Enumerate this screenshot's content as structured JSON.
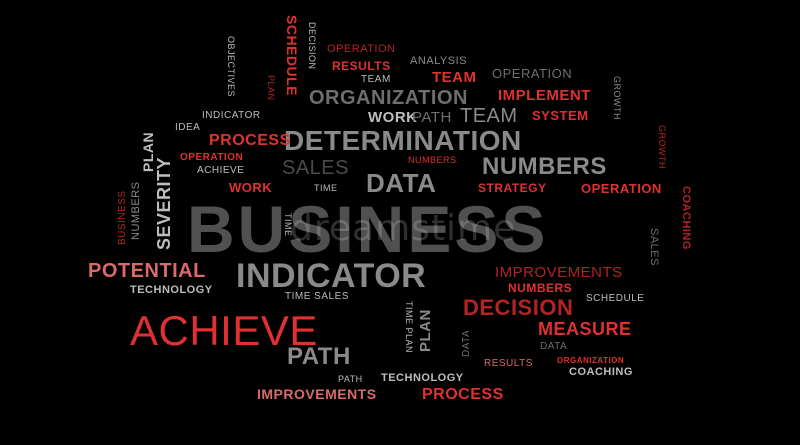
{
  "palette": {
    "background": "#000000",
    "red": "#e03131",
    "dark_red": "#b22424",
    "salmon": "#d96a6a",
    "grey": "#8a8a8a",
    "light_grey": "#bdbdbd",
    "dark_grey": "#4a4a4a"
  },
  "watermark": "dreamstime",
  "words": [
    {
      "id": "business",
      "text": "BUSINESS",
      "color": "#505050"
    },
    {
      "id": "indicator-large",
      "text": "INDICATOR",
      "color": "#8a8a8a"
    },
    {
      "id": "achieve-large",
      "text": "ACHIEVE",
      "color": "#e03131"
    },
    {
      "id": "determination",
      "text": "DETERMINATION",
      "color": "#8a8a8a"
    },
    {
      "id": "numbers-large",
      "text": "NUMBERS",
      "color": "#8a8a8a"
    },
    {
      "id": "organization",
      "text": "ORGANIZATION",
      "color": "#6e6e6e"
    },
    {
      "id": "data-large",
      "text": "DATA",
      "color": "#8a8a8a"
    },
    {
      "id": "sales-mid",
      "text": "SALES",
      "color": "#4a4a4a"
    },
    {
      "id": "path-large",
      "text": "PATH",
      "color": "#8a8a8a"
    },
    {
      "id": "potential",
      "text": "POTENTIAL",
      "color": "#d96a6a"
    },
    {
      "id": "decision-mid",
      "text": "DECISION",
      "color": "#b22424"
    },
    {
      "id": "measure",
      "text": "MEASURE",
      "color": "#e03131"
    },
    {
      "id": "improvements-top",
      "text": "IMPROVEMENTS",
      "color": "#b22424"
    },
    {
      "id": "improvements-bottom",
      "text": "IMPROVEMENTS",
      "color": "#d96a6a"
    },
    {
      "id": "process-left",
      "text": "PROCESS",
      "color": "#e03131"
    },
    {
      "id": "process-bottom",
      "text": "PROCESS",
      "color": "#e03131"
    },
    {
      "id": "work-mid",
      "text": "WORK",
      "color": "#bdbdbd"
    },
    {
      "id": "path-mid",
      "text": "PATH",
      "color": "#6e6e6e"
    },
    {
      "id": "team-grey",
      "text": "TEAM",
      "color": "#8a8a8a"
    },
    {
      "id": "team-red",
      "text": "TEAM",
      "color": "#e03131"
    },
    {
      "id": "implement",
      "text": "IMPLEMENT",
      "color": "#e03131"
    },
    {
      "id": "system",
      "text": "SYSTEM",
      "color": "#e03131"
    },
    {
      "id": "results-top",
      "text": "RESULTS",
      "color": "#e03131"
    },
    {
      "id": "operation-top",
      "text": "OPERATION",
      "color": "#b22424"
    },
    {
      "id": "analysis",
      "text": "ANALYSIS",
      "color": "#8a8a8a"
    },
    {
      "id": "team-small",
      "text": "TEAM",
      "color": "#bdbdbd"
    },
    {
      "id": "operation-right-top",
      "text": "OPERATION",
      "color": "#6e6e6e"
    },
    {
      "id": "strategy",
      "text": "STRATEGY",
      "color": "#e03131"
    },
    {
      "id": "operation-right",
      "text": "OPERATION",
      "color": "#e03131"
    },
    {
      "id": "numbers-small-mid",
      "text": "NUMBERS",
      "color": "#e03131"
    },
    {
      "id": "time-mid",
      "text": "TIME",
      "color": "#bdbdbd"
    },
    {
      "id": "work-red",
      "text": "WORK",
      "color": "#e03131"
    },
    {
      "id": "operation-left",
      "text": "OPERATION",
      "color": "#e03131"
    },
    {
      "id": "achieve-small",
      "text": "ACHIEVE",
      "color": "#bdbdbd"
    },
    {
      "id": "idea",
      "text": "IDEA",
      "color": "#bdbdbd"
    },
    {
      "id": "indicator-small",
      "text": "INDICATOR",
      "color": "#bdbdbd"
    },
    {
      "id": "technology-left",
      "text": "TECHNOLOGY",
      "color": "#bdbdbd"
    },
    {
      "id": "numbers-right",
      "text": "NUMBERS",
      "color": "#e03131"
    },
    {
      "id": "schedule-right",
      "text": "SCHEDULE",
      "color": "#bdbdbd"
    },
    {
      "id": "time-sales",
      "text": "TIME SALES",
      "color": "#bdbdbd"
    },
    {
      "id": "data-small",
      "text": "DATA",
      "color": "#6e6e6e"
    },
    {
      "id": "results-bottom",
      "text": "RESULTS",
      "color": "#d96a6a"
    },
    {
      "id": "organization-small",
      "text": "ORGANIZATION",
      "color": "#e03131"
    },
    {
      "id": "coaching-bottom",
      "text": "COACHING",
      "color": "#bdbdbd"
    },
    {
      "id": "path-small",
      "text": "PATH",
      "color": "#bdbdbd"
    },
    {
      "id": "technology-bottom",
      "text": "TECHNOLOGY",
      "color": "#bdbdbd"
    },
    {
      "id": "objectives-v",
      "text": "OBJECTIVES",
      "color": "#bdbdbd"
    },
    {
      "id": "plan-top-v",
      "text": "PLAN",
      "color": "#b22424"
    },
    {
      "id": "schedule-top-v",
      "text": "SCHEDULE",
      "color": "#e03131"
    },
    {
      "id": "decision-top-v",
      "text": "DECISION",
      "color": "#bdbdbd"
    },
    {
      "id": "growth-top-v",
      "text": "GROWTH",
      "color": "#8a8a8a"
    },
    {
      "id": "growth-right-v",
      "text": "GROWTH",
      "color": "#b22424"
    },
    {
      "id": "coaching-v",
      "text": "COACHING",
      "color": "#b22424"
    },
    {
      "id": "sales-right-v",
      "text": "SALES",
      "color": "#6e6e6e"
    },
    {
      "id": "plan-left-v",
      "text": "PLAN",
      "color": "#bdbdbd"
    },
    {
      "id": "severity-v",
      "text": "SEVERITY",
      "color": "#bdbdbd"
    },
    {
      "id": "numbers-left-v",
      "text": "NUMBERS",
      "color": "#8a8a8a"
    },
    {
      "id": "business-left-v",
      "text": "BUSINESS",
      "color": "#b22424"
    },
    {
      "id": "time-left-v",
      "text": "TIME",
      "color": "#bdbdbd"
    },
    {
      "id": "plan-mid-v",
      "text": "PLAN",
      "color": "#8a8a8a"
    },
    {
      "id": "time-plan-v",
      "text": "TIME PLAN",
      "color": "#bdbdbd"
    },
    {
      "id": "data-bottom-v",
      "text": "DATA",
      "color": "#6e6e6e"
    }
  ]
}
